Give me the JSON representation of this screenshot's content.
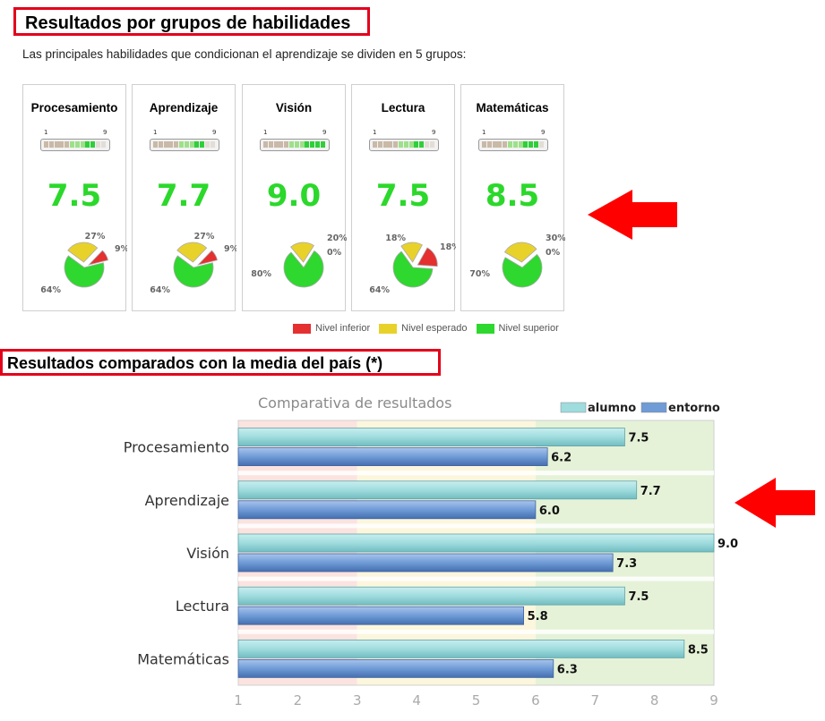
{
  "section1": {
    "title": "Resultados por grupos de habilidades",
    "intro": "Las principales habilidades que condicionan el aprendizaje se dividen en 5 grupos:"
  },
  "cards": [
    {
      "name": "Procesamiento",
      "score": "7.5",
      "meter_value": 7.5,
      "pie": {
        "inferior": 9,
        "esperado": 27,
        "superior": 64
      }
    },
    {
      "name": "Aprendizaje",
      "score": "7.7",
      "meter_value": 7.7,
      "pie": {
        "inferior": 9,
        "esperado": 27,
        "superior": 64
      }
    },
    {
      "name": "Visión",
      "score": "9.0",
      "meter_value": 9.0,
      "pie": {
        "inferior": 0,
        "esperado": 20,
        "superior": 80
      }
    },
    {
      "name": "Lectura",
      "score": "7.5",
      "meter_value": 7.5,
      "pie": {
        "inferior": 18,
        "esperado": 18,
        "superior": 64
      }
    },
    {
      "name": "Matemáticas",
      "score": "8.5",
      "meter_value": 8.5,
      "pie": {
        "inferior": 0,
        "esperado": 30,
        "superior": 70
      }
    }
  ],
  "meter_ticks": {
    "min": "1",
    "max": "9"
  },
  "legend": [
    {
      "label": "Nivel inferior",
      "color": "#e53030"
    },
    {
      "label": "Nivel esperado",
      "color": "#e8d22a"
    },
    {
      "label": "Nivel superior",
      "color": "#2ed82e"
    }
  ],
  "section2": {
    "title": "Resultados comparados con la media del país (*)"
  },
  "chart_data": {
    "type": "bar",
    "orientation": "horizontal",
    "title": "Comparativa de resultados",
    "categories": [
      "Procesamiento",
      "Aprendizaje",
      "Visión",
      "Lectura",
      "Matemáticas"
    ],
    "series": [
      {
        "name": "alumno",
        "values": [
          7.5,
          7.7,
          9.0,
          7.5,
          8.5
        ],
        "color": "#9fdcde"
      },
      {
        "name": "entorno",
        "values": [
          6.2,
          6.0,
          7.3,
          5.8,
          6.3
        ],
        "color": "#6f9bd6"
      }
    ],
    "xlim": [
      1,
      9
    ],
    "xticks": [
      "1",
      "2",
      "3",
      "4",
      "5",
      "6",
      "7",
      "8",
      "9"
    ],
    "legend_position": "top-right",
    "background_bands": [
      {
        "from": 1,
        "to": 3,
        "color": "#fbe3df"
      },
      {
        "from": 3,
        "to": 6,
        "color": "#fcf6dd"
      },
      {
        "from": 6,
        "to": 9,
        "color": "#e5f2d8"
      }
    ]
  }
}
